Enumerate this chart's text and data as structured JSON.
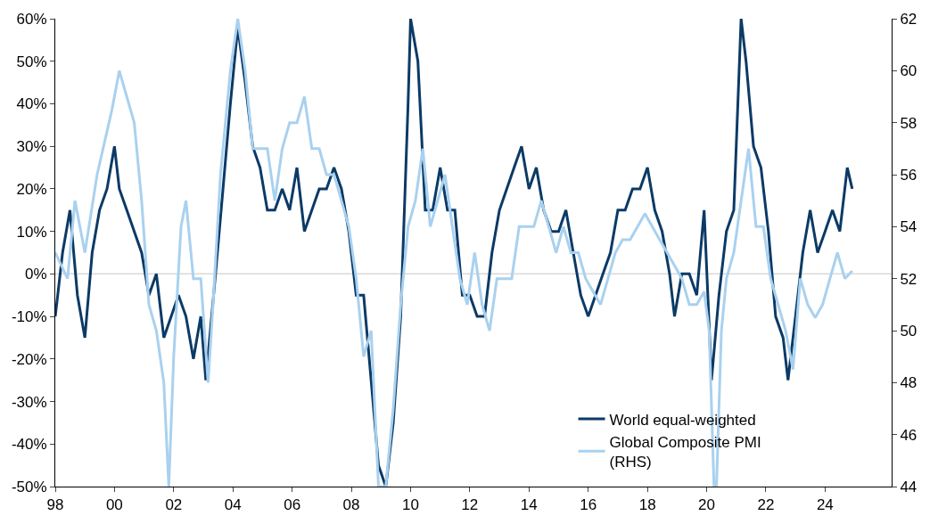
{
  "chart_data": {
    "type": "line",
    "legend": "bottom right",
    "grid": false,
    "xlim": [
      "1998-01-01",
      "2026-04-01"
    ],
    "xticks": [
      {
        "value": "1998-01-01",
        "label": "98"
      },
      {
        "value": "2000-01-01",
        "label": "00"
      },
      {
        "value": "2002-01-01",
        "label": "02"
      },
      {
        "value": "2004-01-01",
        "label": "04"
      },
      {
        "value": "2006-01-01",
        "label": "06"
      },
      {
        "value": "2008-01-01",
        "label": "08"
      },
      {
        "value": "2010-01-01",
        "label": "10"
      },
      {
        "value": "2012-01-01",
        "label": "12"
      },
      {
        "value": "2014-01-01",
        "label": "14"
      },
      {
        "value": "2016-01-01",
        "label": "16"
      },
      {
        "value": "2018-01-01",
        "label": "18"
      },
      {
        "value": "2020-01-01",
        "label": "20"
      },
      {
        "value": "2022-01-01",
        "label": "22"
      },
      {
        "value": "2024-01-01",
        "label": "24"
      }
    ],
    "ylim": [
      -50,
      60
    ],
    "yticks": [
      {
        "value": -50,
        "label": "-50%"
      },
      {
        "value": -40,
        "label": "-40%"
      },
      {
        "value": -30,
        "label": "-30%"
      },
      {
        "value": -20,
        "label": "-20%"
      },
      {
        "value": -10,
        "label": "-10%"
      },
      {
        "value": 0,
        "label": "0%"
      },
      {
        "value": 10,
        "label": "10%"
      },
      {
        "value": 20,
        "label": "20%"
      },
      {
        "value": 30,
        "label": "30%"
      },
      {
        "value": 40,
        "label": "40%"
      },
      {
        "value": 50,
        "label": "50%"
      },
      {
        "value": 60,
        "label": "60%"
      }
    ],
    "ref_lines": [
      {
        "axis": "y",
        "value": 0,
        "color": "#d9d9d9"
      }
    ],
    "y2lim": [
      44,
      62
    ],
    "y2ticks": [
      44,
      46,
      48,
      50,
      52,
      54,
      56,
      58,
      60,
      62
    ],
    "series": [
      {
        "name": "World equal-weighted",
        "color": "#0b3a66",
        "axis": "y",
        "x": [
          "1998-01",
          "1998-04",
          "1998-07",
          "1998-10",
          "1999-01",
          "1999-04",
          "1999-07",
          "1999-10",
          "2000-01",
          "2000-03",
          "2000-06",
          "2000-09",
          "2000-12",
          "2001-03",
          "2001-06",
          "2001-09",
          "2001-12",
          "2002-03",
          "2002-06",
          "2002-09",
          "2002-12",
          "2003-02",
          "2003-06",
          "2003-09",
          "2003-12",
          "2004-03",
          "2004-06",
          "2004-09",
          "2004-12",
          "2005-03",
          "2005-06",
          "2005-09",
          "2005-12",
          "2006-03",
          "2006-06",
          "2006-09",
          "2006-12",
          "2007-03",
          "2007-06",
          "2007-09",
          "2007-12",
          "2008-03",
          "2008-06",
          "2008-09",
          "2008-12",
          "2009-03",
          "2009-06",
          "2009-09",
          "2009-12",
          "2010-01",
          "2010-04",
          "2010-07",
          "2010-10",
          "2011-01",
          "2011-04",
          "2011-07",
          "2011-10",
          "2012-01",
          "2012-04",
          "2012-07",
          "2012-10",
          "2013-01",
          "2013-04",
          "2013-07",
          "2013-10",
          "2014-01",
          "2014-04",
          "2014-07",
          "2014-10",
          "2015-01",
          "2015-04",
          "2015-07",
          "2015-10",
          "2016-01",
          "2016-04",
          "2016-07",
          "2016-10",
          "2017-01",
          "2017-04",
          "2017-07",
          "2017-10",
          "2018-01",
          "2018-04",
          "2018-07",
          "2018-10",
          "2018-12",
          "2019-03",
          "2019-06",
          "2019-09",
          "2019-12",
          "2020-03",
          "2020-06",
          "2020-09",
          "2020-12",
          "2021-03",
          "2021-05",
          "2021-08",
          "2021-11",
          "2022-02",
          "2022-05",
          "2022-08",
          "2022-10",
          "2023-01",
          "2023-04",
          "2023-07",
          "2023-10",
          "2024-01",
          "2024-04",
          "2024-07",
          "2024-10",
          "2024-12"
        ],
        "values": [
          -10,
          5,
          15,
          -5,
          -15,
          5,
          15,
          20,
          30,
          20,
          15,
          10,
          5,
          -5,
          0,
          -15,
          -10,
          -5,
          -10,
          -20,
          -10,
          -25,
          0,
          20,
          40,
          58,
          45,
          30,
          25,
          15,
          15,
          20,
          15,
          25,
          10,
          15,
          20,
          20,
          25,
          20,
          10,
          -5,
          -5,
          -25,
          -45,
          -50,
          -35,
          -10,
          40,
          60,
          50,
          15,
          15,
          25,
          15,
          15,
          -5,
          -5,
          -10,
          -10,
          5,
          15,
          20,
          25,
          30,
          20,
          25,
          15,
          10,
          10,
          15,
          5,
          -5,
          -10,
          -5,
          0,
          5,
          15,
          15,
          20,
          20,
          25,
          15,
          10,
          0,
          -10,
          0,
          0,
          -5,
          15,
          -25,
          -5,
          10,
          15,
          60,
          50,
          30,
          25,
          10,
          -10,
          -15,
          -25,
          -10,
          5,
          15,
          5,
          10,
          15,
          10,
          25,
          20
        ]
      },
      {
        "name": "Global Composite PMI\n(RHS)",
        "color": "#a9d1ef",
        "axis": "y2",
        "x": [
          "1998-01",
          "1998-06",
          "1998-09",
          "1999-01",
          "1999-06",
          "1999-12",
          "2000-03",
          "2000-06",
          "2000-09",
          "2000-12",
          "2001-03",
          "2001-06",
          "2001-09",
          "2001-11",
          "2002-01",
          "2002-04",
          "2002-06",
          "2002-09",
          "2002-12",
          "2003-03",
          "2003-05",
          "2003-08",
          "2003-12",
          "2004-03",
          "2004-06",
          "2004-09",
          "2004-12",
          "2005-03",
          "2005-06",
          "2005-09",
          "2005-12",
          "2006-03",
          "2006-06",
          "2006-09",
          "2006-12",
          "2007-03",
          "2007-06",
          "2007-09",
          "2007-12",
          "2008-03",
          "2008-06",
          "2008-09",
          "2008-12",
          "2009-03",
          "2009-06",
          "2009-09",
          "2009-12",
          "2010-03",
          "2010-06",
          "2010-09",
          "2010-12",
          "2011-03",
          "2011-06",
          "2011-09",
          "2011-12",
          "2012-03",
          "2012-06",
          "2012-09",
          "2012-12",
          "2013-03",
          "2013-06",
          "2013-09",
          "2013-12",
          "2014-03",
          "2014-06",
          "2014-09",
          "2014-12",
          "2015-03",
          "2015-06",
          "2015-09",
          "2015-12",
          "2016-03",
          "2016-06",
          "2016-09",
          "2016-12",
          "2017-03",
          "2017-06",
          "2017-09",
          "2017-12",
          "2018-03",
          "2018-06",
          "2018-09",
          "2018-12",
          "2019-03",
          "2019-06",
          "2019-09",
          "2019-12",
          "2020-02",
          "2020-04",
          "2020-05",
          "2020-07",
          "2020-09",
          "2020-12",
          "2021-03",
          "2021-06",
          "2021-09",
          "2021-12",
          "2022-03",
          "2022-06",
          "2022-09",
          "2022-12",
          "2023-03",
          "2023-06",
          "2023-09",
          "2023-12",
          "2024-03",
          "2024-06",
          "2024-09",
          "2024-12"
        ],
        "values": [
          53,
          52,
          55,
          53,
          56,
          58.5,
          60,
          59,
          58,
          55,
          51,
          50,
          48,
          44,
          49,
          54,
          55,
          52,
          52,
          48,
          51,
          56,
          60,
          62,
          60,
          57,
          57,
          57,
          55,
          57,
          58,
          58,
          59,
          57,
          57,
          56,
          56,
          55,
          54,
          52,
          49,
          50,
          44,
          44,
          47,
          51,
          54,
          55,
          57,
          54,
          55,
          56,
          54,
          52,
          51,
          53,
          51,
          50,
          52,
          52,
          52,
          54,
          54,
          54,
          55,
          54,
          53,
          54,
          53,
          53,
          52,
          51.5,
          51,
          52,
          53,
          53.5,
          53.5,
          54,
          54.5,
          54,
          53.5,
          53,
          52.5,
          52,
          51,
          51,
          51.5,
          50,
          44,
          44,
          50,
          52,
          53,
          55,
          57,
          54,
          54,
          52,
          51,
          50,
          48.5,
          52,
          51,
          50.5,
          51,
          52,
          53,
          52,
          52.3
        ]
      }
    ]
  }
}
